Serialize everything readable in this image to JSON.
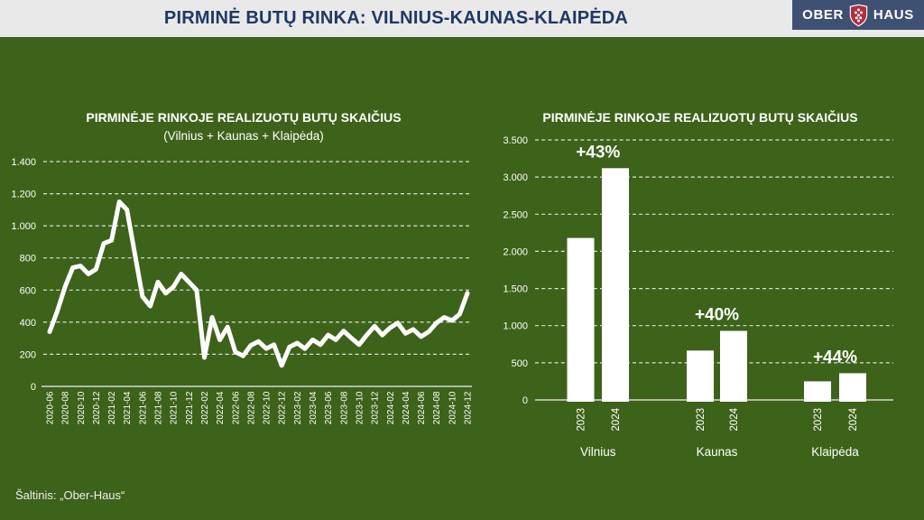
{
  "header": {
    "title": "PIRMINĖ BUTŲ RINKA: VILNIUS-KAUNAS-KLAIPĖDA",
    "logo": {
      "left": "OBER",
      "right": "HAUS",
      "shield_icon": "grapes-shield-icon"
    }
  },
  "footer": {
    "source": "Šaltinis: „Ober-Haus“"
  },
  "colors": {
    "background": "#3d621a",
    "header_bg": "#e9e9e9",
    "header_text": "#1f3864",
    "logo_bg": "#3e5173",
    "logo_shield_red": "#b03040",
    "chart_white": "#ffffff"
  },
  "chart_data": [
    {
      "type": "line",
      "title": "PIRMINĖJE RINKOJE REALIZUOTŲ BUTŲ SKAIČIUS",
      "subtitle": "(Vilnius + Kaunas + Klaipėda)",
      "x": [
        "2020-06",
        "2020-07",
        "2020-08",
        "2020-09",
        "2020-10",
        "2020-11",
        "2020-12",
        "2021-01",
        "2021-02",
        "2021-03",
        "2021-04",
        "2021-05",
        "2021-06",
        "2021-07",
        "2021-08",
        "2021-09",
        "2021-10",
        "2021-11",
        "2021-12",
        "2022-01",
        "2022-02",
        "2022-03",
        "2022-04",
        "2022-05",
        "2022-06",
        "2022-07",
        "2022-08",
        "2022-09",
        "2022-10",
        "2022-11",
        "2022-12",
        "2023-01",
        "2023-02",
        "2023-03",
        "2023-04",
        "2023-05",
        "2023-06",
        "2023-07",
        "2023-08",
        "2023-09",
        "2023-10",
        "2023-11",
        "2023-12",
        "2024-01",
        "2024-02",
        "2024-03",
        "2024-04",
        "2024-05",
        "2024-06",
        "2024-07",
        "2024-08",
        "2024-09",
        "2024-10",
        "2024-11",
        "2024-12"
      ],
      "values": [
        340,
        470,
        620,
        740,
        750,
        700,
        730,
        890,
        910,
        1150,
        1100,
        830,
        560,
        500,
        650,
        580,
        620,
        700,
        650,
        600,
        180,
        430,
        290,
        370,
        215,
        190,
        255,
        280,
        235,
        260,
        130,
        245,
        270,
        235,
        290,
        260,
        320,
        290,
        345,
        300,
        260,
        320,
        375,
        320,
        365,
        395,
        330,
        355,
        310,
        340,
        395,
        430,
        410,
        450,
        580
      ],
      "x_tick_every": 2,
      "ylim": [
        0,
        1400
      ],
      "ytick_step": 200,
      "y_tick_labels": [
        "0",
        "200",
        "400",
        "600",
        "800",
        "1.000",
        "1.200",
        "1.400"
      ],
      "grid": "dashed horizontal",
      "legend": "none",
      "line_color": "#ffffff"
    },
    {
      "type": "bar",
      "title": "PIRMINĖJE RINKOJE REALIZUOTŲ BUTŲ SKAIČIUS",
      "groups": [
        {
          "city": "Vilnius",
          "change_label": "+43%",
          "bars": [
            {
              "year": "2023",
              "value": 2180
            },
            {
              "year": "2024",
              "value": 3120
            }
          ]
        },
        {
          "city": "Kaunas",
          "change_label": "+40%",
          "bars": [
            {
              "year": "2023",
              "value": 665
            },
            {
              "year": "2024",
              "value": 930
            }
          ]
        },
        {
          "city": "Klaipėda",
          "change_label": "+44%",
          "bars": [
            {
              "year": "2023",
              "value": 250
            },
            {
              "year": "2024",
              "value": 360
            }
          ]
        }
      ],
      "ylim": [
        0,
        3500
      ],
      "ytick_step": 500,
      "y_tick_labels": [
        "0",
        "500",
        "1.000",
        "1.500",
        "2.000",
        "2.500",
        "3.000",
        "3.500"
      ],
      "grid": "dashed horizontal",
      "legend": "none",
      "bar_color": "#ffffff"
    }
  ]
}
